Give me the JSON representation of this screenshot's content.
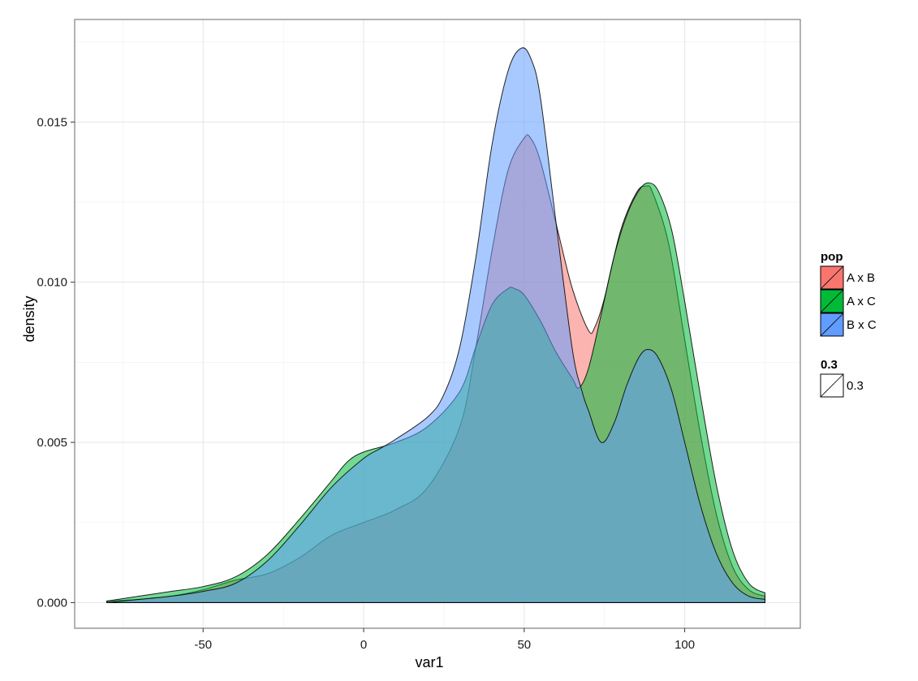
{
  "chart_data": {
    "type": "area",
    "subtype": "density",
    "title": "",
    "xlabel": "var1",
    "ylabel": "density",
    "xlim": [
      -90,
      136
    ],
    "ylim": [
      -0.0008,
      0.0182
    ],
    "x_ticks": [
      -50,
      0,
      50,
      100
    ],
    "x_tick_labels": [
      "-50",
      "0",
      "50",
      "100"
    ],
    "y_ticks": [
      0.0,
      0.005,
      0.01,
      0.015
    ],
    "y_tick_labels": [
      "0.000",
      "0.005",
      "0.010",
      "0.015"
    ],
    "grid": true,
    "fill_alpha": 0.3,
    "legend_position": "right",
    "legends": [
      {
        "title": "pop",
        "entries": [
          {
            "label": "A x B",
            "color": "#F8766D"
          },
          {
            "label": "A x C",
            "color": "#00BA38"
          },
          {
            "label": "B x C",
            "color": "#619CFF"
          }
        ]
      },
      {
        "title": "0.3",
        "entries": [
          {
            "label": "0.3",
            "color": "#ffffff"
          }
        ]
      }
    ],
    "series": [
      {
        "name": "A x B",
        "color": "#F8766D",
        "x": [
          -80,
          -70,
          -60,
          -50,
          -40,
          -30,
          -20,
          -10,
          0,
          10,
          20,
          30,
          35,
          40,
          45,
          50,
          52,
          55,
          60,
          65,
          70,
          72,
          75,
          80,
          85,
          88,
          90,
          95,
          100,
          105,
          110,
          115,
          120,
          125
        ],
        "values": [
          5e-05,
          0.0001,
          0.0002,
          0.0004,
          0.0007,
          0.0009,
          0.0014,
          0.0021,
          0.0025,
          0.0029,
          0.0036,
          0.0055,
          0.008,
          0.011,
          0.0135,
          0.0145,
          0.0145,
          0.0138,
          0.0118,
          0.0098,
          0.0085,
          0.0086,
          0.0095,
          0.0116,
          0.0128,
          0.013,
          0.0128,
          0.0112,
          0.0082,
          0.0052,
          0.0027,
          0.0011,
          0.0004,
          0.0002
        ]
      },
      {
        "name": "A x C",
        "color": "#00BA38",
        "x": [
          -80,
          -70,
          -60,
          -50,
          -40,
          -30,
          -20,
          -10,
          -5,
          0,
          10,
          20,
          30,
          35,
          40,
          45,
          47,
          50,
          55,
          60,
          65,
          67,
          70,
          74,
          78,
          82,
          86,
          89,
          92,
          96,
          100,
          105,
          110,
          115,
          120,
          125
        ],
        "values": [
          5e-05,
          0.0002,
          0.00035,
          0.0005,
          0.0008,
          0.0015,
          0.0026,
          0.0038,
          0.0044,
          0.0047,
          0.005,
          0.0055,
          0.0066,
          0.008,
          0.0093,
          0.0098,
          0.0098,
          0.0096,
          0.0088,
          0.0078,
          0.007,
          0.0067,
          0.0073,
          0.009,
          0.0108,
          0.0121,
          0.0129,
          0.0131,
          0.0128,
          0.0116,
          0.0094,
          0.0064,
          0.0036,
          0.0016,
          0.0006,
          0.0003
        ]
      },
      {
        "name": "B x C",
        "color": "#619CFF",
        "x": [
          -80,
          -70,
          -60,
          -50,
          -40,
          -30,
          -20,
          -10,
          0,
          5,
          10,
          20,
          25,
          30,
          35,
          40,
          45,
          49,
          52,
          55,
          60,
          65,
          68,
          70,
          74,
          78,
          82,
          86,
          89,
          92,
          96,
          100,
          105,
          110,
          115,
          120,
          125
        ],
        "values": [
          0.0,
          0.0001,
          0.0002,
          0.00035,
          0.0006,
          0.0013,
          0.0024,
          0.0036,
          0.0045,
          0.0048,
          0.0051,
          0.0058,
          0.0065,
          0.008,
          0.0108,
          0.0143,
          0.0166,
          0.0173,
          0.017,
          0.0158,
          0.0118,
          0.0079,
          0.0066,
          0.006,
          0.005,
          0.0056,
          0.0068,
          0.0077,
          0.0079,
          0.0076,
          0.0066,
          0.005,
          0.003,
          0.0015,
          0.0006,
          0.0002,
          0.0001
        ]
      }
    ]
  }
}
